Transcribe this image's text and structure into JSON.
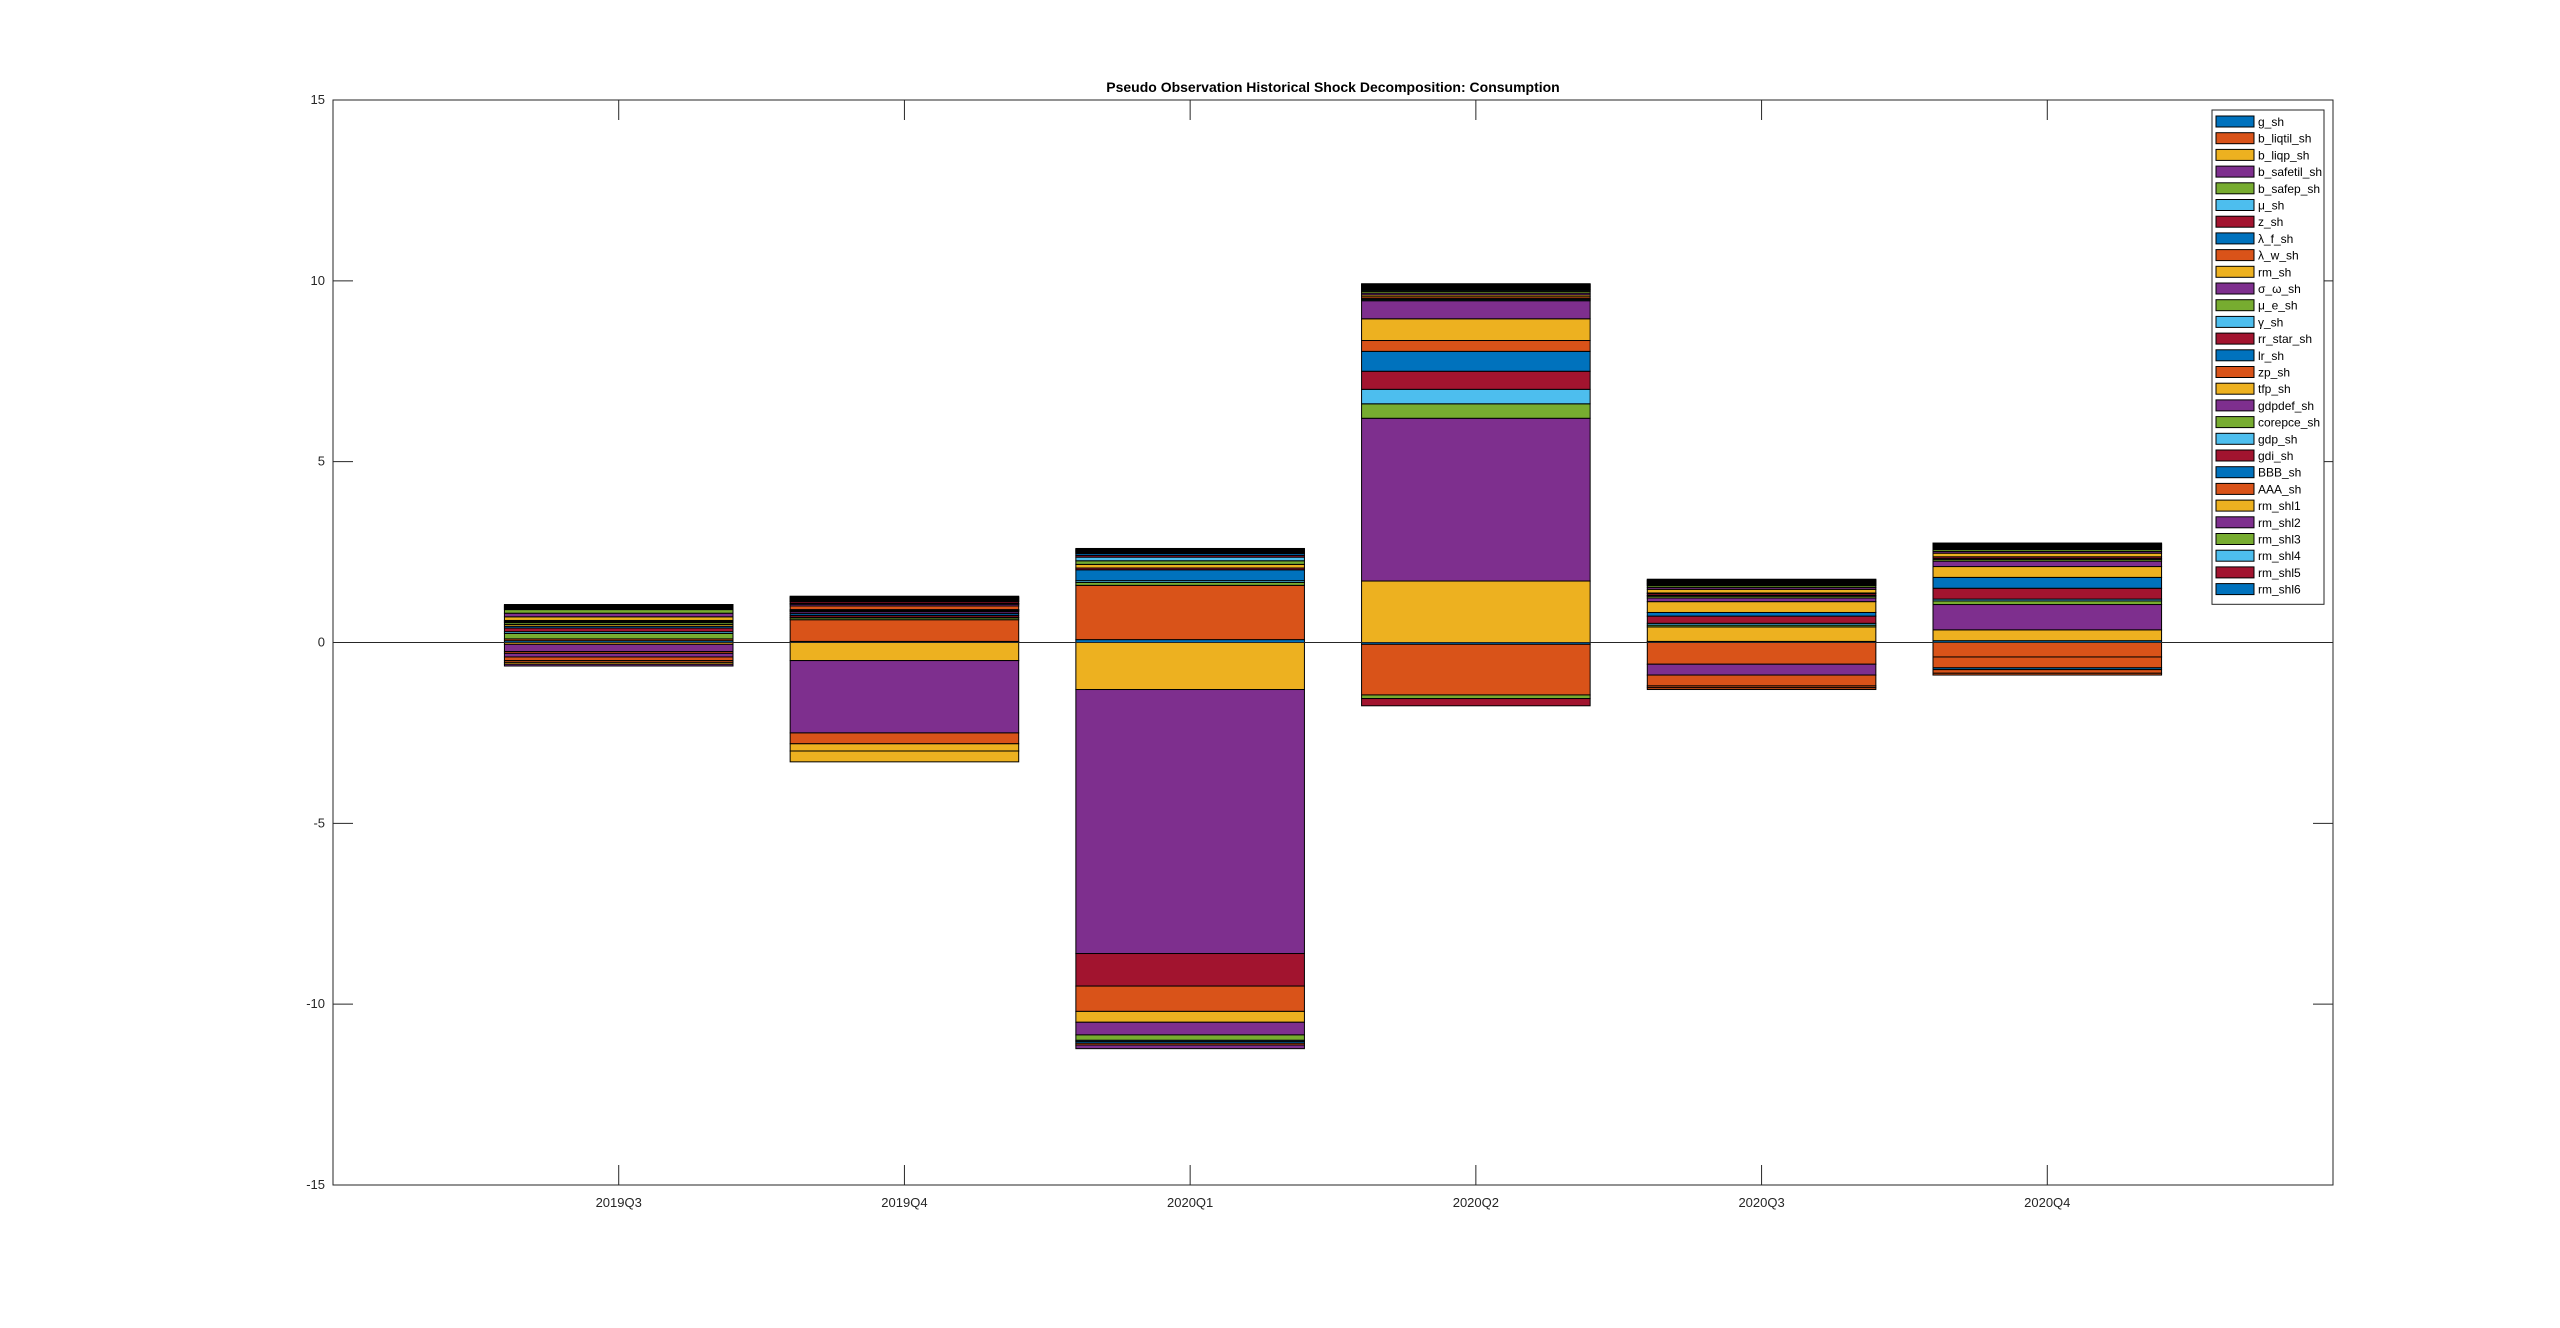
{
  "chart_data": {
    "type": "bar",
    "stacked": true,
    "title": "Pseudo Observation Historical Shock Decomposition: Consumption",
    "xlabel": "",
    "ylabel": "",
    "categories": [
      "2019Q3",
      "2019Q4",
      "2020Q1",
      "2020Q2",
      "2020Q3",
      "2020Q4"
    ],
    "xlim": [
      0,
      7
    ],
    "ylim": [
      -15,
      15
    ],
    "yticks": [
      -15,
      -10,
      -5,
      0,
      5,
      10,
      15
    ],
    "ytick_labels": [
      "-15",
      "-10",
      "-5",
      "0",
      "5",
      "10",
      "15"
    ],
    "grid": false,
    "legend_position": "top-right",
    "colors": {
      "blue": "#0072BD",
      "orange": "#D95319",
      "yellow": "#EDB120",
      "purple": "#7E2F8E",
      "green": "#77AC30",
      "cyan": "#4DBEEE",
      "red": "#A2142F"
    },
    "series": [
      {
        "name": "g_sh",
        "color": "#0072BD",
        "values": [
          0.05,
          0.03,
          0.08,
          -0.05,
          0.03,
          0.05
        ]
      },
      {
        "name": "b_liqtil_sh",
        "color": "#D95319",
        "values": [
          0.05,
          0.6,
          1.5,
          -1.4,
          -0.6,
          -0.4
        ]
      },
      {
        "name": "b_liqp_sh",
        "color": "#EDB120",
        "values": [
          -0.05,
          -0.5,
          -1.3,
          1.7,
          0.4,
          0.3
        ]
      },
      {
        "name": "b_safetil_sh",
        "color": "#7E2F8E",
        "values": [
          -0.2,
          -2.0,
          -7.3,
          4.5,
          -0.3,
          0.7
        ]
      },
      {
        "name": "b_safep_sh",
        "color": "#77AC30",
        "values": [
          0.15,
          0.05,
          0.08,
          0.4,
          0.05,
          0.1
        ]
      },
      {
        "name": "μ_sh",
        "color": "#4DBEEE",
        "values": [
          0.05,
          0.02,
          0.05,
          0.4,
          0.05,
          0.05
        ]
      },
      {
        "name": "z_sh",
        "color": "#A2142F",
        "values": [
          0.1,
          0.05,
          -0.9,
          0.5,
          0.2,
          0.3
        ]
      },
      {
        "name": "λ_f_sh",
        "color": "#0072BD",
        "values": [
          0.05,
          0.05,
          0.3,
          0.55,
          0.1,
          0.3
        ]
      },
      {
        "name": "λ_w_sh",
        "color": "#D95319",
        "values": [
          -0.05,
          -0.3,
          -0.7,
          0.3,
          -0.3,
          -0.3
        ]
      },
      {
        "name": "rm_sh",
        "color": "#EDB120",
        "values": [
          0.05,
          -0.2,
          -0.3,
          0.6,
          0.3,
          0.3
        ]
      },
      {
        "name": "σ_ω_sh",
        "color": "#7E2F8E",
        "values": [
          -0.1,
          0.05,
          -0.35,
          0.5,
          0.1,
          0.15
        ]
      },
      {
        "name": "μ_e_sh",
        "color": "#77AC30",
        "values": [
          0.05,
          0.02,
          -0.15,
          -0.1,
          0.05,
          0.05
        ]
      },
      {
        "name": "γ_sh",
        "color": "#4DBEEE",
        "values": [
          0.02,
          0.01,
          -0.03,
          0.03,
          0.02,
          0.02
        ]
      },
      {
        "name": "rr_star_sh",
        "color": "#A2142F",
        "values": [
          0.02,
          0.02,
          0.05,
          -0.2,
          0.05,
          0.05
        ]
      },
      {
        "name": "lr_sh",
        "color": "#0072BD",
        "values": [
          0.02,
          0.01,
          -0.05,
          0.03,
          0.02,
          -0.05
        ]
      },
      {
        "name": "zp_sh",
        "color": "#D95319",
        "values": [
          -0.1,
          0.1,
          -0.05,
          0.05,
          -0.05,
          -0.1
        ]
      },
      {
        "name": "tfp_sh",
        "color": "#EDB120",
        "values": [
          0.1,
          -0.3,
          0.1,
          0.05,
          0.1,
          0.1
        ]
      },
      {
        "name": "gdpdef_sh",
        "color": "#7E2F8E",
        "values": [
          0.1,
          0.05,
          -0.1,
          0.05,
          0.05,
          0.05
        ]
      },
      {
        "name": "corepce_sh",
        "color": "#77AC30",
        "values": [
          0.1,
          0.01,
          0.1,
          0.05,
          0.05,
          0.05
        ]
      },
      {
        "name": "gdp_sh",
        "color": "#4DBEEE",
        "values": [
          0.02,
          0.01,
          0.1,
          0.03,
          0.02,
          0.02
        ]
      },
      {
        "name": "gdi_sh",
        "color": "#A2142F",
        "values": [
          0.02,
          0.05,
          0.05,
          0.02,
          0.02,
          0.02
        ]
      },
      {
        "name": "BBB_sh",
        "color": "#0072BD",
        "values": [
          0.02,
          0.01,
          0.05,
          0.02,
          0.02,
          0.02
        ]
      },
      {
        "name": "AAA_sh",
        "color": "#D95319",
        "values": [
          -0.05,
          0.02,
          0.02,
          0.02,
          -0.05,
          -0.05
        ]
      },
      {
        "name": "rm_shl1",
        "color": "#EDB120",
        "values": [
          -0.05,
          0.02,
          0.02,
          0.02,
          0.02,
          0.02
        ]
      },
      {
        "name": "rm_shl2",
        "color": "#7E2F8E",
        "values": [
          -0.05,
          0.02,
          0.02,
          0.02,
          0.02,
          0.02
        ]
      },
      {
        "name": "rm_shl3",
        "color": "#77AC30",
        "values": [
          0.02,
          0.02,
          0.02,
          0.02,
          0.02,
          0.02
        ]
      },
      {
        "name": "rm_shl4",
        "color": "#4DBEEE",
        "values": [
          0.02,
          0.02,
          0.02,
          0.02,
          0.02,
          0.02
        ]
      },
      {
        "name": "rm_shl5",
        "color": "#A2142F",
        "values": [
          0.02,
          0.02,
          0.02,
          0.02,
          0.02,
          0.02
        ]
      },
      {
        "name": "rm_shl6",
        "color": "#0072BD",
        "values": [
          0.02,
          0.02,
          0.02,
          0.02,
          0.02,
          0.02
        ]
      }
    ]
  }
}
